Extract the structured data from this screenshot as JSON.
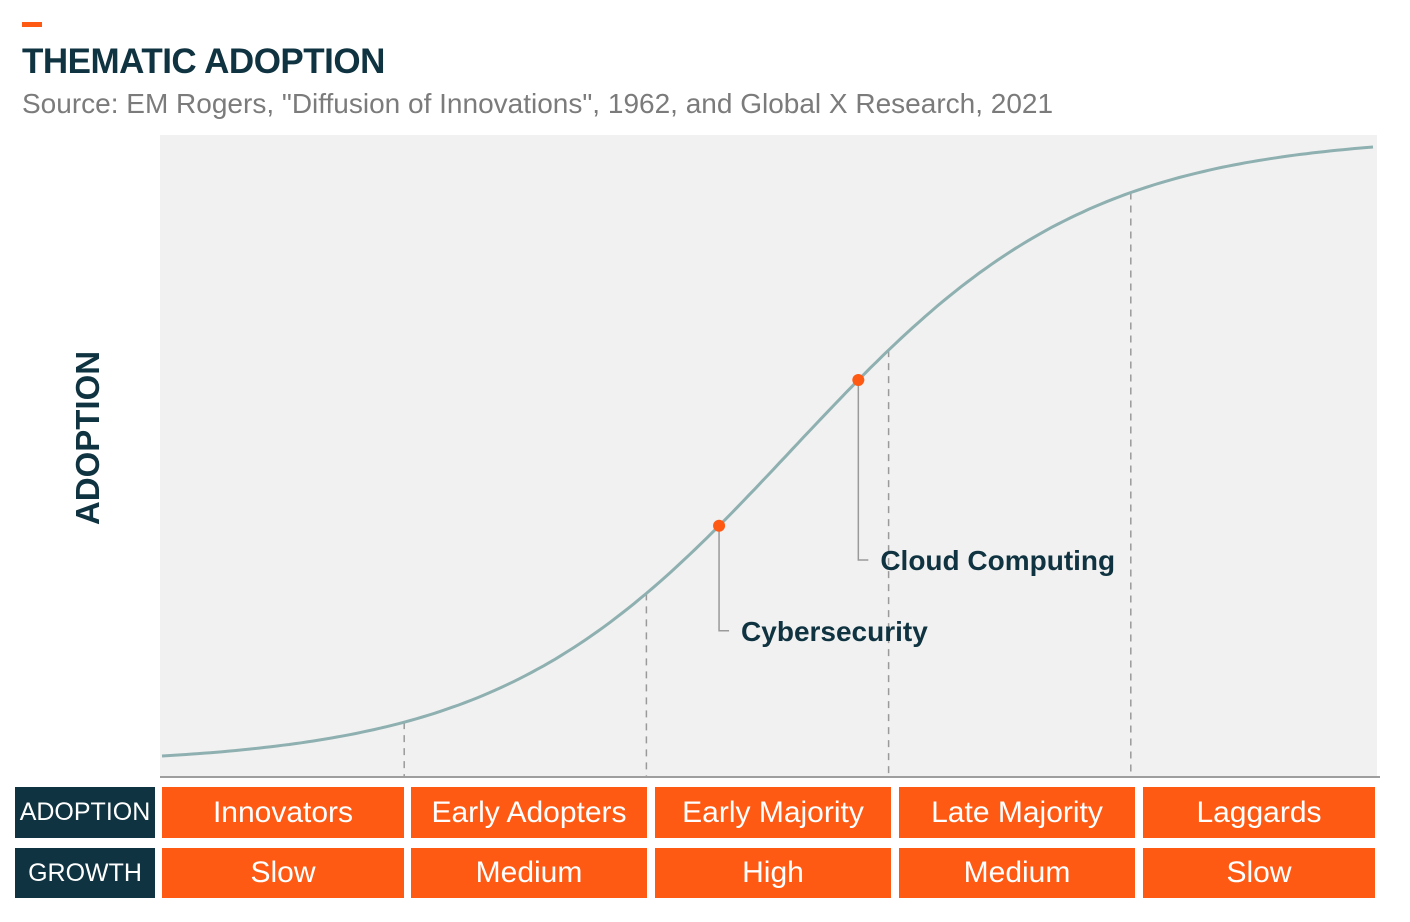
{
  "title": "THEMATIC ADOPTION",
  "subtitle": "Source: EM Rogers, \"Diffusion of Innovations\", 1962, and Global X Research, 2021",
  "colors": {
    "accent": "#ff5a14",
    "navy": "#0f3340",
    "curve": "#8fb0b0",
    "panel": "#f1f1f1"
  },
  "chart_data": {
    "type": "line",
    "title": "THEMATIC ADOPTION",
    "ylabel": "ADOPTION",
    "xlabel": "",
    "grid": false,
    "xlim": [
      0,
      100
    ],
    "ylim": [
      0,
      100
    ],
    "curve": "logistic S-curve (diffusion of innovations)",
    "series": [
      {
        "name": "Adoption",
        "x": [
          0,
          10,
          20,
          30,
          35,
          40,
          45,
          50,
          55,
          60,
          65,
          70,
          75,
          80,
          85,
          90,
          100
        ],
        "values": [
          0,
          0.5,
          2,
          5,
          8,
          14,
          24,
          37,
          52,
          67,
          78,
          87,
          93,
          96.5,
          98.5,
          99.3,
          100
        ]
      }
    ],
    "segment_boundaries": [
      20,
      40,
      60,
      80
    ],
    "segments": [
      "Innovators",
      "Early Adopters",
      "Early Majority",
      "Late Majority",
      "Laggards"
    ],
    "growth": [
      "Slow",
      "Medium",
      "High",
      "Medium",
      "Slow"
    ],
    "points": [
      {
        "label": "Cybersecurity",
        "x": 46
      },
      {
        "label": "Cloud Computing",
        "x": 57.5
      }
    ]
  },
  "table": {
    "adoption_header": "ADOPTION",
    "growth_header": "GROWTH",
    "adoption": [
      "Innovators",
      "Early Adopters",
      "Early Majority",
      "Late Majority",
      "Laggards"
    ],
    "growth": [
      "Slow",
      "Medium",
      "High",
      "Medium",
      "Slow"
    ]
  }
}
